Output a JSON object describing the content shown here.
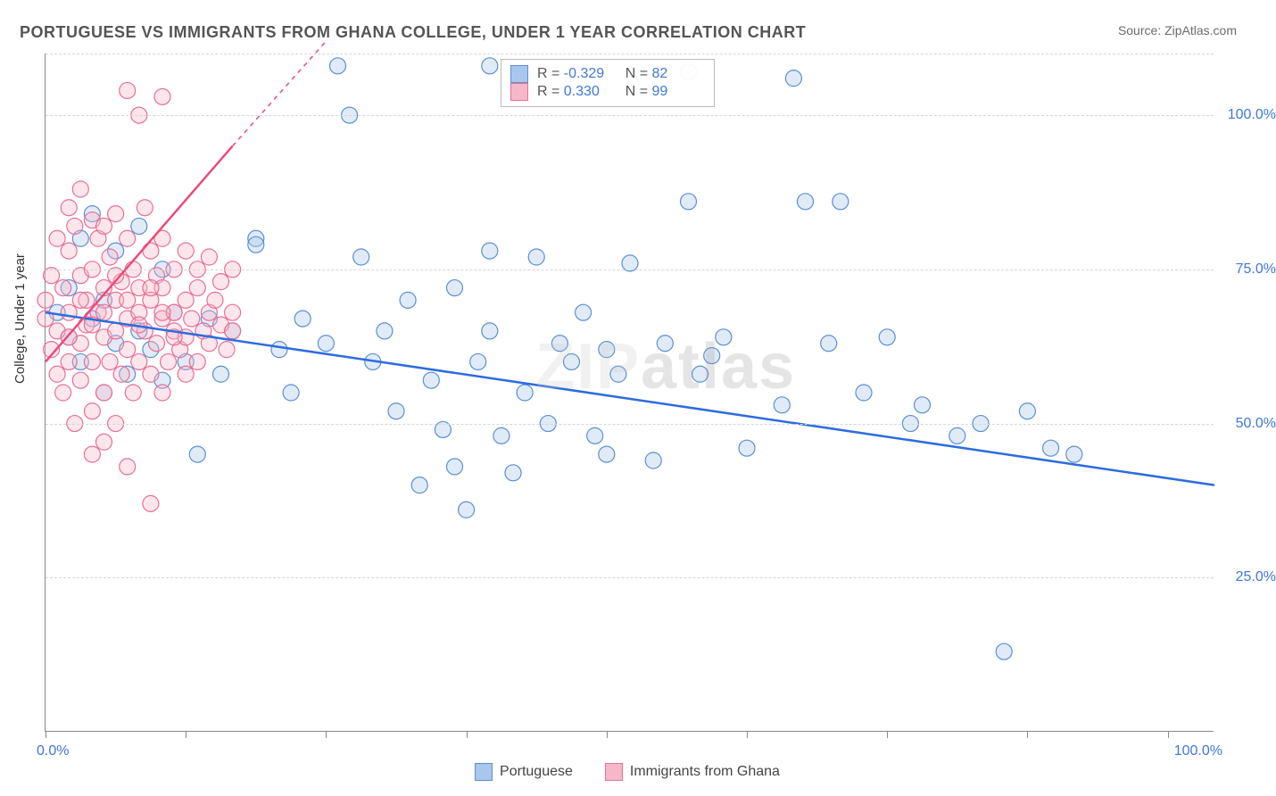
{
  "title": "PORTUGUESE VS IMMIGRANTS FROM GHANA COLLEGE, UNDER 1 YEAR CORRELATION CHART",
  "source": "Source: ZipAtlas.com",
  "y_axis_label": "College, Under 1 year",
  "watermark": "ZIPatlas",
  "chart": {
    "type": "scatter",
    "xlim": [
      0,
      100
    ],
    "ylim": [
      0,
      110
    ],
    "x_ticks_at": [
      0,
      12,
      24,
      36,
      48,
      60,
      72,
      84,
      96
    ],
    "x_tick_labels": {
      "left": "0.0%",
      "right": "100.0%"
    },
    "y_gridlines": [
      25,
      50,
      75,
      100,
      110
    ],
    "y_tick_labels": [
      "25.0%",
      "50.0%",
      "75.0%",
      "100.0%"
    ],
    "grid_color": "#d5d5d5",
    "axis_color": "#888888",
    "background_color": "#ffffff",
    "marker_radius": 9,
    "marker_stroke_width": 1.2,
    "marker_fill_opacity": 0.35,
    "trendline_width": 2.5,
    "series": [
      {
        "name": "Portuguese",
        "color_fill": "#a9c6ec",
        "color_stroke": "#5a8fd6",
        "trendline_color": "#2d6cdf",
        "R": "-0.329",
        "N": "82",
        "trendline": {
          "x1": 0,
          "y1": 68,
          "x2": 100,
          "y2": 40
        },
        "points": [
          [
            1,
            68
          ],
          [
            2,
            64
          ],
          [
            2,
            72
          ],
          [
            3,
            60
          ],
          [
            3,
            80
          ],
          [
            4,
            67
          ],
          [
            4,
            84
          ],
          [
            5,
            55
          ],
          [
            5,
            70
          ],
          [
            6,
            63
          ],
          [
            6,
            78
          ],
          [
            7,
            58
          ],
          [
            8,
            65
          ],
          [
            8,
            82
          ],
          [
            9,
            62
          ],
          [
            10,
            75
          ],
          [
            10,
            57
          ],
          [
            11,
            68
          ],
          [
            12,
            60
          ],
          [
            13,
            45
          ],
          [
            14,
            67
          ],
          [
            15,
            58
          ],
          [
            16,
            65
          ],
          [
            18,
            80
          ],
          [
            18,
            79
          ],
          [
            20,
            62
          ],
          [
            21,
            55
          ],
          [
            22,
            67
          ],
          [
            24,
            63
          ],
          [
            25,
            108
          ],
          [
            26,
            100
          ],
          [
            27,
            77
          ],
          [
            28,
            60
          ],
          [
            29,
            65
          ],
          [
            30,
            52
          ],
          [
            31,
            70
          ],
          [
            32,
            40
          ],
          [
            33,
            57
          ],
          [
            34,
            49
          ],
          [
            35,
            43
          ],
          [
            35,
            72
          ],
          [
            36,
            36
          ],
          [
            37,
            60
          ],
          [
            38,
            108
          ],
          [
            38,
            65
          ],
          [
            39,
            48
          ],
          [
            40,
            42
          ],
          [
            41,
            55
          ],
          [
            42,
            77
          ],
          [
            43,
            50
          ],
          [
            44,
            63
          ],
          [
            45,
            60
          ],
          [
            46,
            68
          ],
          [
            47,
            48
          ],
          [
            48,
            45
          ],
          [
            49,
            58
          ],
          [
            50,
            76
          ],
          [
            53,
            63
          ],
          [
            55,
            86
          ],
          [
            55,
            107
          ],
          [
            57,
            61
          ],
          [
            58,
            64
          ],
          [
            60,
            46
          ],
          [
            63,
            53
          ],
          [
            64,
            106
          ],
          [
            65,
            86
          ],
          [
            67,
            63
          ],
          [
            70,
            55
          ],
          [
            72,
            64
          ],
          [
            74,
            50
          ],
          [
            75,
            53
          ],
          [
            78,
            48
          ],
          [
            80,
            50
          ],
          [
            82,
            13
          ],
          [
            84,
            52
          ],
          [
            86,
            46
          ],
          [
            88,
            45
          ],
          [
            68,
            86
          ],
          [
            48,
            62
          ],
          [
            38,
            78
          ],
          [
            52,
            44
          ],
          [
            56,
            58
          ]
        ]
      },
      {
        "name": "Immigrants from Ghana",
        "color_fill": "#f6b8c8",
        "color_stroke": "#e96f93",
        "trendline_color": "#e94b7a",
        "trendline_dash_extension": true,
        "R": "0.330",
        "N": "99",
        "trendline": {
          "x1": 0,
          "y1": 60,
          "x2": 16,
          "y2": 95
        },
        "trendline_ext": {
          "x1": 16,
          "y1": 95,
          "x2": 24,
          "y2": 112
        },
        "points": [
          [
            0,
            67
          ],
          [
            0,
            70
          ],
          [
            0.5,
            62
          ],
          [
            0.5,
            74
          ],
          [
            1,
            58
          ],
          [
            1,
            80
          ],
          [
            1,
            65
          ],
          [
            1.5,
            55
          ],
          [
            1.5,
            72
          ],
          [
            2,
            60
          ],
          [
            2,
            78
          ],
          [
            2,
            68
          ],
          [
            2,
            85
          ],
          [
            2.5,
            50
          ],
          [
            2.5,
            82
          ],
          [
            3,
            63
          ],
          [
            3,
            74
          ],
          [
            3,
            57
          ],
          [
            3,
            88
          ],
          [
            3.5,
            66
          ],
          [
            3.5,
            70
          ],
          [
            4,
            75
          ],
          [
            4,
            60
          ],
          [
            4,
            52
          ],
          [
            4,
            83
          ],
          [
            4,
            45
          ],
          [
            4.5,
            68
          ],
          [
            4.5,
            80
          ],
          [
            5,
            64
          ],
          [
            5,
            72
          ],
          [
            5,
            55
          ],
          [
            5,
            47
          ],
          [
            5,
            82
          ],
          [
            5.5,
            60
          ],
          [
            5.5,
            77
          ],
          [
            6,
            70
          ],
          [
            6,
            84
          ],
          [
            6,
            50
          ],
          [
            6,
            65
          ],
          [
            6.5,
            58
          ],
          [
            6.5,
            73
          ],
          [
            7,
            67
          ],
          [
            7,
            62
          ],
          [
            7,
            80
          ],
          [
            7,
            43
          ],
          [
            7.5,
            75
          ],
          [
            7.5,
            55
          ],
          [
            8,
            68
          ],
          [
            8,
            60
          ],
          [
            8,
            100
          ],
          [
            8,
            72
          ],
          [
            8.5,
            65
          ],
          [
            8.5,
            85
          ],
          [
            9,
            58
          ],
          [
            9,
            70
          ],
          [
            9,
            78
          ],
          [
            9,
            37
          ],
          [
            9.5,
            63
          ],
          [
            9.5,
            74
          ],
          [
            10,
            67
          ],
          [
            10,
            80
          ],
          [
            10,
            55
          ],
          [
            10,
            103
          ],
          [
            10,
            72
          ],
          [
            10.5,
            60
          ],
          [
            11,
            65
          ],
          [
            11,
            75
          ],
          [
            11,
            68
          ],
          [
            11.5,
            62
          ],
          [
            12,
            70
          ],
          [
            12,
            58
          ],
          [
            12,
            78
          ],
          [
            12,
            64
          ],
          [
            12.5,
            67
          ],
          [
            13,
            72
          ],
          [
            13,
            60
          ],
          [
            13,
            75
          ],
          [
            13.5,
            65
          ],
          [
            14,
            68
          ],
          [
            14,
            63
          ],
          [
            14,
            77
          ],
          [
            14.5,
            70
          ],
          [
            15,
            66
          ],
          [
            15,
            73
          ],
          [
            15.5,
            62
          ],
          [
            16,
            68
          ],
          [
            16,
            75
          ],
          [
            16,
            65
          ],
          [
            7,
            104
          ],
          [
            2,
            64
          ],
          [
            3,
            70
          ],
          [
            4,
            66
          ],
          [
            5,
            68
          ],
          [
            6,
            74
          ],
          [
            7,
            70
          ],
          [
            8,
            66
          ],
          [
            9,
            72
          ],
          [
            10,
            68
          ],
          [
            11,
            64
          ]
        ]
      }
    ]
  },
  "legend_top": {
    "rows": [
      {
        "swatch_fill": "#a9c6ec",
        "swatch_stroke": "#5a8fd6",
        "R": "-0.329",
        "N": "82"
      },
      {
        "swatch_fill": "#f6b8c8",
        "swatch_stroke": "#e96f93",
        "R": "0.330",
        "N": "99"
      }
    ]
  },
  "legend_bottom": {
    "items": [
      {
        "swatch_fill": "#a9c6ec",
        "swatch_stroke": "#5a8fd6",
        "label": "Portuguese"
      },
      {
        "swatch_fill": "#f6b8c8",
        "swatch_stroke": "#e96f93",
        "label": "Immigrants from Ghana"
      }
    ]
  }
}
